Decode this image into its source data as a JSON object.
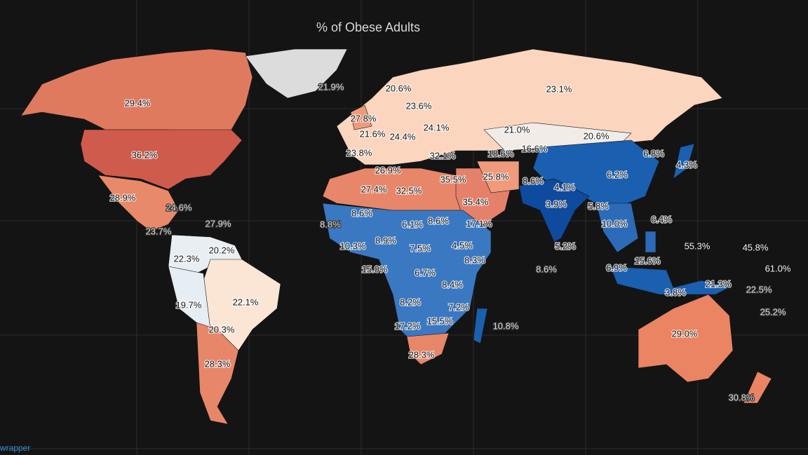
{
  "header": {
    "title": "% of Obese Adults"
  },
  "labels": [
    "21.9%",
    "20.6%",
    "23.1%",
    "29.4%",
    "23.6%",
    "27.8%",
    "24.1%",
    "21.0%",
    "21.6%",
    "24.4%",
    "20.6%",
    "23.8%",
    "32.1%",
    "18.6%",
    "16.6%",
    "6.8%",
    "36.2%",
    "4.3%",
    "26.9%",
    "6.2%",
    "25.8%",
    "35.5%",
    "8.6%",
    "27.4%",
    "32.5%",
    "4.1%",
    "28.9%",
    "35.4%",
    "24.6%",
    "3.9%",
    "5.8%",
    "8.6%",
    "6.4%",
    "8.8%",
    "6.1%",
    "8.6%",
    "17.1%",
    "10.0%",
    "27.9%",
    "23.7%",
    "55.3%",
    "45.8%",
    "10.3%",
    "8.9%",
    "7.5%",
    "4.5%",
    "5.2%",
    "20.2%",
    "22.3%",
    "8.3%",
    "15.6%",
    "6.9%",
    "8.6%",
    "15.0%",
    "6.7%",
    "61.0%",
    "8.4%",
    "21.3%",
    "22.5%",
    "3.8%",
    "19.7%",
    "22.1%",
    "8.2%",
    "7.2%",
    "25.2%",
    "17.2%",
    "15.5%",
    "10.8%",
    "20.3%",
    "29.0%",
    "28.3%",
    "28.3%",
    "30.8%"
  ],
  "footer": {
    "credit": "wrapper"
  }
}
